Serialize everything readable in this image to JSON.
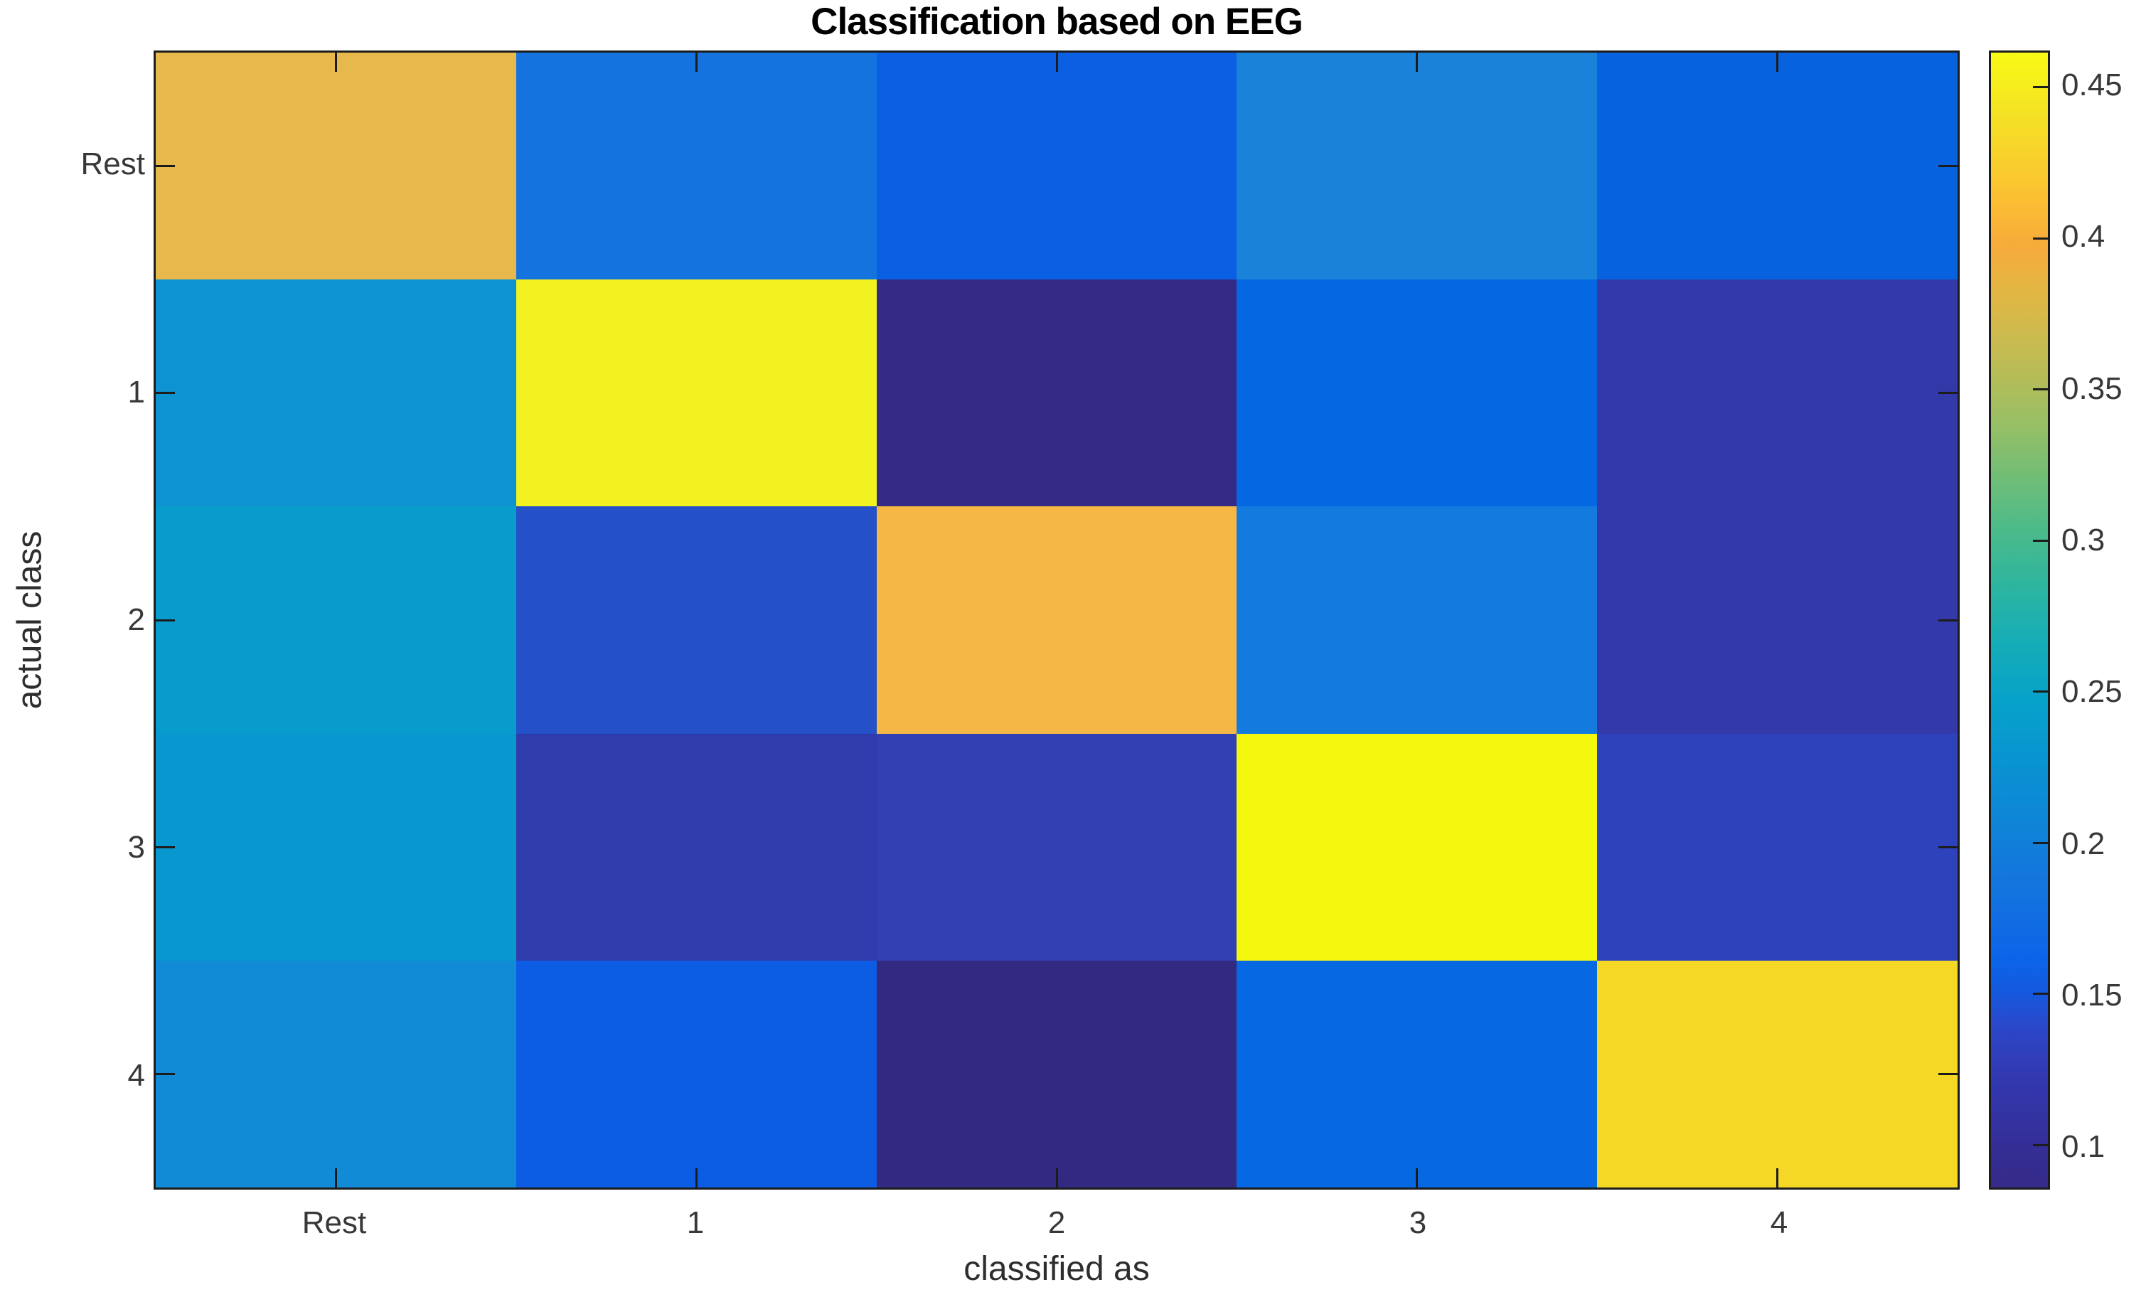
{
  "chart_data": {
    "type": "heatmap",
    "title": "Classification based on EEG",
    "xlabel": "classified as",
    "ylabel": "actual class",
    "colormap": "parula",
    "x_categories": [
      "Rest",
      "1",
      "2",
      "3",
      "4"
    ],
    "y_categories": [
      "Rest",
      "1",
      "2",
      "3",
      "4"
    ],
    "values": [
      [
        0.38,
        0.175,
        0.155,
        0.19,
        0.155
      ],
      [
        0.195,
        0.455,
        0.086,
        0.16,
        0.115
      ],
      [
        0.205,
        0.135,
        0.405,
        0.18,
        0.115
      ],
      [
        0.2,
        0.12,
        0.125,
        0.46,
        0.13
      ],
      [
        0.19,
        0.15,
        0.09,
        0.165,
        0.425
      ]
    ],
    "cell_colors": [
      [
        "#e7b94c",
        "#1473df",
        "#0b5fe3",
        "#1b82d9",
        "#0762e0"
      ],
      [
        "#0d93d1",
        "#f2f220",
        "#332b85",
        "#0667e2",
        "#3439aa"
      ],
      [
        "#089ccd",
        "#2450c8",
        "#f6b845",
        "#127bdd",
        "#3439aa"
      ],
      [
        "#0997d0",
        "#303cac",
        "#3340b4",
        "#f4f70e",
        "#2e42bb"
      ],
      [
        "#118bd5",
        "#0d5ce4",
        "#322a80",
        "#0669e2",
        "#f5d826"
      ]
    ],
    "colorbar": {
      "min": 0.086,
      "max": 0.4615,
      "ticks": [
        0.1,
        0.15,
        0.2,
        0.25,
        0.3,
        0.35,
        0.4,
        0.45
      ],
      "tick_labels": [
        "0.1",
        "0.15",
        "0.2",
        "0.25",
        "0.3",
        "0.35",
        "0.4",
        "0.45"
      ],
      "gradient_stops": [
        {
          "pos": 0.0,
          "color": "#352a87"
        },
        {
          "pos": 0.05,
          "color": "#34309c"
        },
        {
          "pos": 0.1,
          "color": "#3239b2"
        },
        {
          "pos": 0.14,
          "color": "#2c46c8"
        },
        {
          "pos": 0.17,
          "color": "#1658dd"
        },
        {
          "pos": 0.2,
          "color": "#0b64e9"
        },
        {
          "pos": 0.24,
          "color": "#126ee2"
        },
        {
          "pos": 0.28,
          "color": "#1378dc"
        },
        {
          "pos": 0.33,
          "color": "#0e87d6"
        },
        {
          "pos": 0.38,
          "color": "#0895d1"
        },
        {
          "pos": 0.43,
          "color": "#07a2c9"
        },
        {
          "pos": 0.48,
          "color": "#15adb7"
        },
        {
          "pos": 0.53,
          "color": "#2db5a0"
        },
        {
          "pos": 0.58,
          "color": "#4cbb8a"
        },
        {
          "pos": 0.63,
          "color": "#74be74"
        },
        {
          "pos": 0.67,
          "color": "#95bf66"
        },
        {
          "pos": 0.71,
          "color": "#b2bd59"
        },
        {
          "pos": 0.75,
          "color": "#ccba4e"
        },
        {
          "pos": 0.79,
          "color": "#e3b643"
        },
        {
          "pos": 0.83,
          "color": "#f7ab3b"
        },
        {
          "pos": 0.87,
          "color": "#fbbf33"
        },
        {
          "pos": 0.91,
          "color": "#f8d22b"
        },
        {
          "pos": 0.95,
          "color": "#f4e423"
        },
        {
          "pos": 1.0,
          "color": "#f9fa15"
        }
      ]
    }
  }
}
